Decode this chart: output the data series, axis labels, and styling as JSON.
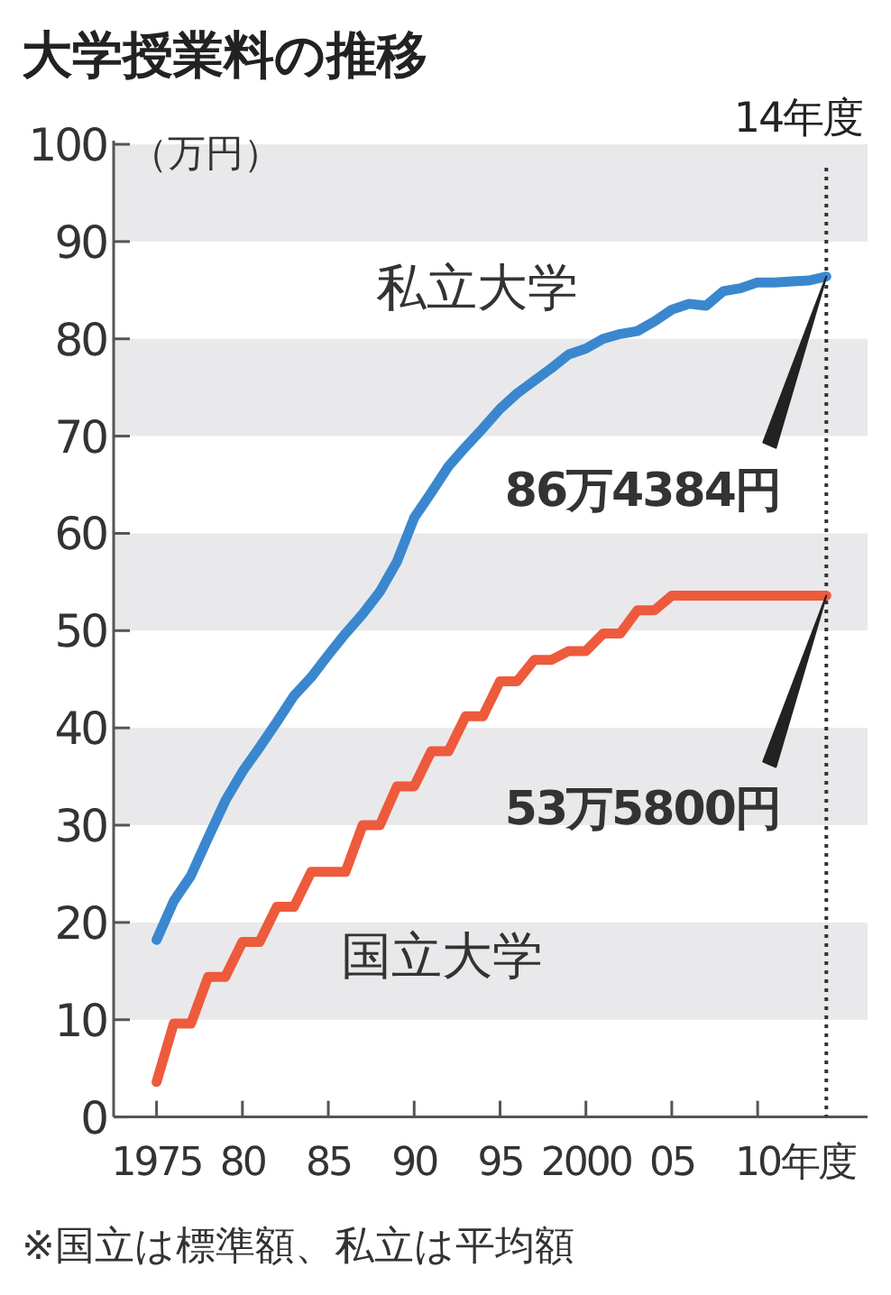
{
  "chart_data": {
    "type": "line",
    "title": "大学授業料の推移",
    "ylabel": "（万円）",
    "x": [
      1975,
      1976,
      1977,
      1978,
      1979,
      1980,
      1981,
      1982,
      1983,
      1984,
      1985,
      1986,
      1987,
      1988,
      1989,
      1990,
      1991,
      1992,
      1993,
      1994,
      1995,
      1996,
      1997,
      1998,
      1999,
      2000,
      2001,
      2002,
      2003,
      2004,
      2005,
      2006,
      2007,
      2008,
      2009,
      2010,
      2011,
      2012,
      2013,
      2014
    ],
    "xlim": [
      1972.5,
      2016.4
    ],
    "xticks": [
      {
        "value": 1975,
        "label": "1975"
      },
      {
        "value": 1980,
        "label": "80"
      },
      {
        "value": 1985,
        "label": "85"
      },
      {
        "value": 1990,
        "label": "90"
      },
      {
        "value": 1995,
        "label": "95"
      },
      {
        "value": 2000,
        "label": "2000"
      },
      {
        "value": 2005,
        "label": "05"
      },
      {
        "value": 2010,
        "label": "10"
      }
    ],
    "xlabel": "年度",
    "ylim": [
      0,
      100
    ],
    "yticks": [
      0,
      10,
      20,
      30,
      40,
      50,
      60,
      70,
      80,
      90,
      100
    ],
    "bands": [
      {
        "axis": "y",
        "from": 10,
        "to": 20,
        "color": "#e9e9eb"
      },
      {
        "axis": "y",
        "from": 30,
        "to": 40,
        "color": "#e9e9eb"
      },
      {
        "axis": "y",
        "from": 50,
        "to": 60,
        "color": "#e9e9eb"
      },
      {
        "axis": "y",
        "from": 70,
        "to": 80,
        "color": "#e9e9eb"
      },
      {
        "axis": "y",
        "from": 90,
        "to": 100,
        "color": "#e9e9eb"
      }
    ],
    "ref_lines": [
      {
        "axis": "x",
        "value": 2014,
        "label": "14年度",
        "line_style": "dotted",
        "color": "#333333"
      }
    ],
    "series": [
      {
        "name": "私立大学",
        "color": "#3a87cf",
        "values": [
          18.2,
          22.2,
          24.8,
          28.7,
          32.5,
          35.5,
          38.0,
          40.6,
          43.3,
          45.2,
          47.5,
          49.7,
          51.7,
          54.0,
          57.1,
          61.6,
          64.2,
          66.9,
          68.9,
          70.8,
          72.8,
          74.4,
          75.7,
          77.0,
          78.4,
          79.0,
          80.0,
          80.5,
          80.8,
          81.8,
          83.0,
          83.6,
          83.4,
          84.9,
          85.2,
          85.8,
          85.8,
          85.9,
          86.0,
          86.4
        ]
      },
      {
        "name": "国立大学",
        "color": "#ee5a3c",
        "values": [
          3.6,
          9.6,
          9.6,
          14.4,
          14.4,
          18.0,
          18.0,
          21.6,
          21.6,
          25.2,
          25.2,
          25.2,
          30.0,
          30.0,
          34.0,
          34.0,
          37.6,
          37.6,
          41.2,
          41.2,
          44.8,
          44.8,
          47.0,
          47.0,
          47.9,
          47.9,
          49.7,
          49.7,
          52.1,
          52.1,
          53.6,
          53.6,
          53.6,
          53.6,
          53.6,
          53.6,
          53.6,
          53.6,
          53.6,
          53.6
        ]
      }
    ],
    "annotations": [
      {
        "text": "86万4384円",
        "x": 2014,
        "y": 86.4
      },
      {
        "text": "53万5800円",
        "x": 2014,
        "y": 53.6
      },
      "※国立は標準額、私立は平均額"
    ]
  }
}
